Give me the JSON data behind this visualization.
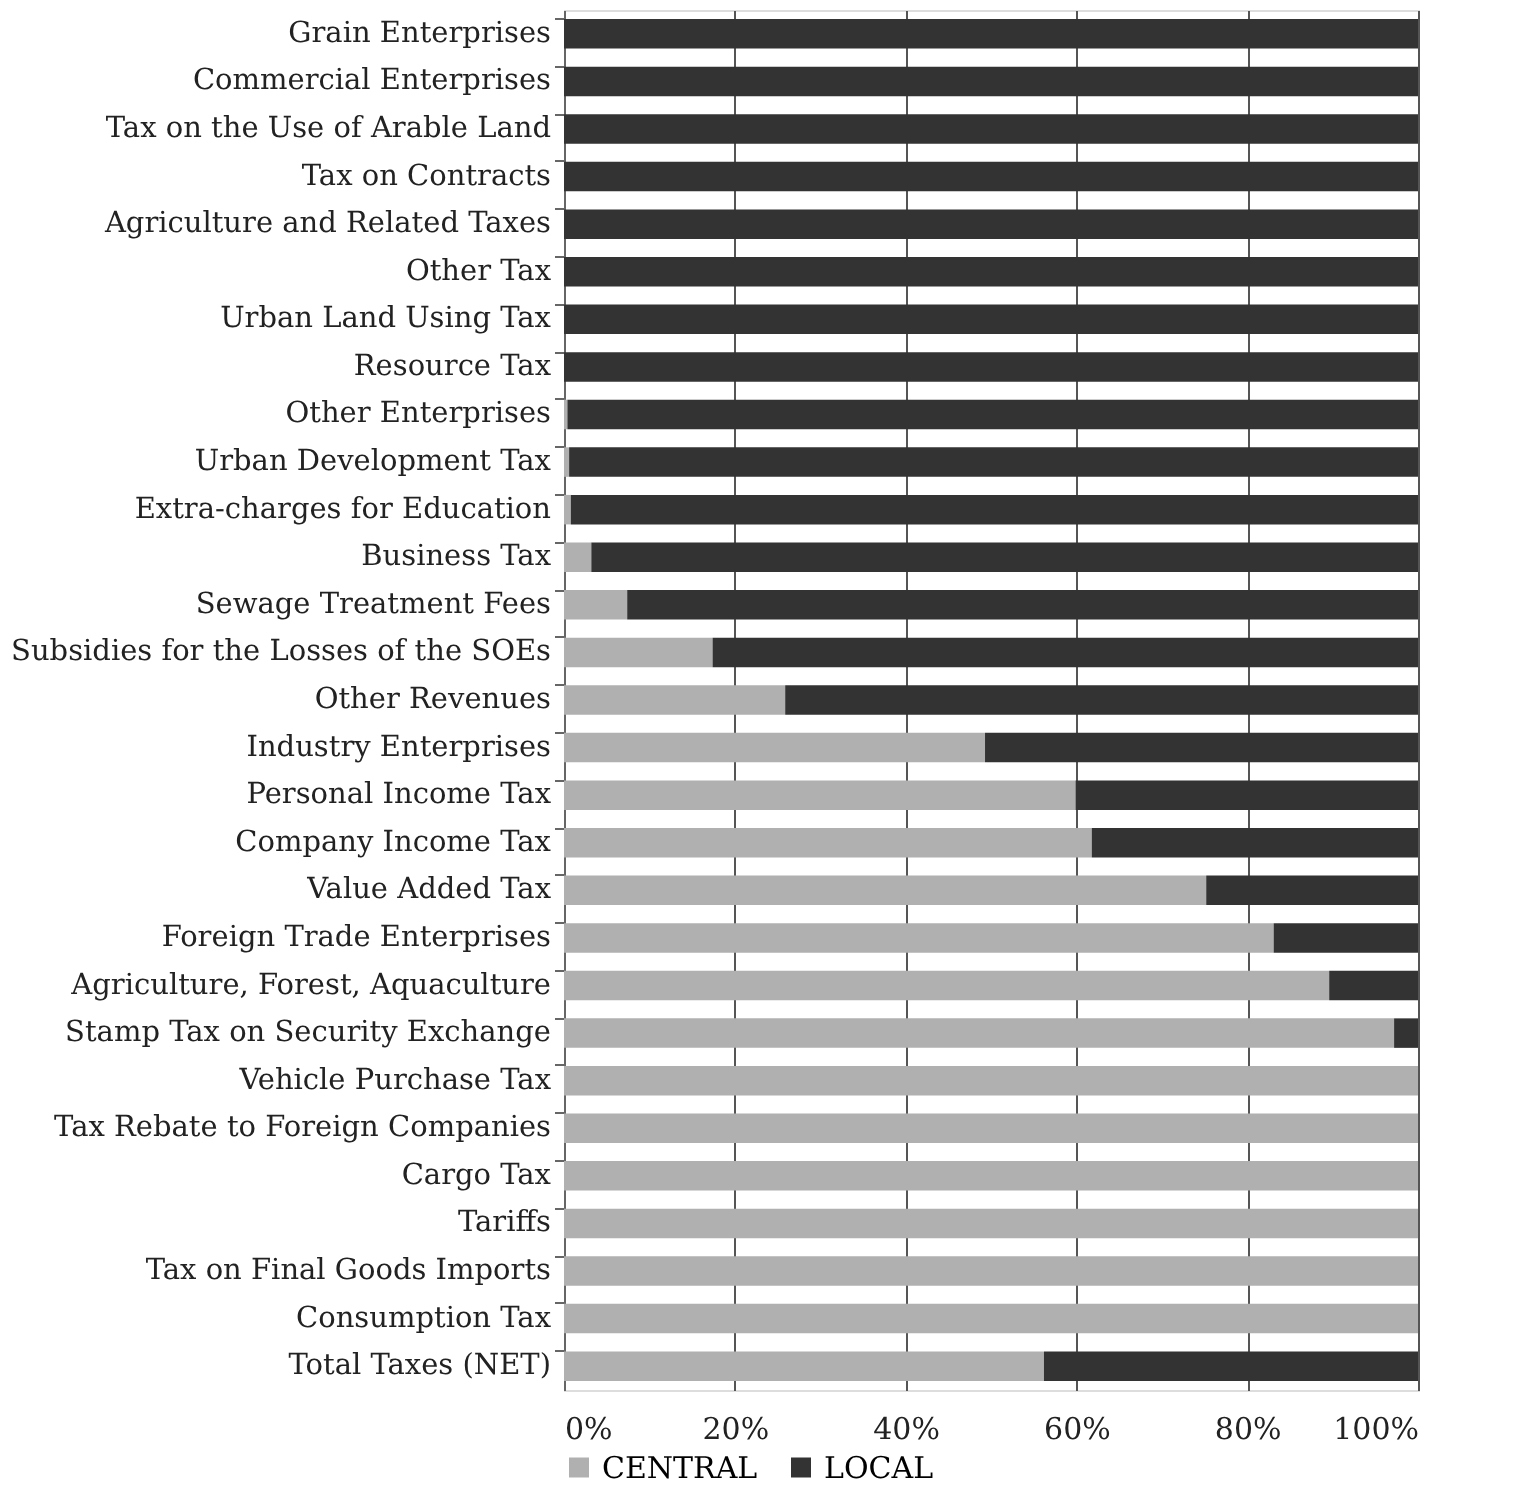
{
  "chart_data": {
    "type": "bar",
    "orientation": "horizontal",
    "stacked": true,
    "categories": [
      "Grain Enterprises",
      "Commercial Enterprises",
      "Tax on the Use of Arable Land",
      "Tax on Contracts",
      "Agriculture and Related Taxes",
      "Other Tax",
      "Urban Land Using Tax",
      "Resource Tax",
      "Other Enterprises",
      "Urban Development Tax",
      "Extra-charges for Education",
      "Business Tax",
      "Sewage Treatment Fees",
      "Subsidies for the Losses of the SOEs",
      "Other Revenues",
      "Industry Enterprises",
      "Personal Income Tax",
      "Company Income Tax",
      "Value Added Tax",
      "Foreign Trade Enterprises",
      "Agriculture, Forest, Aquaculture",
      "Stamp Tax on Security Exchange",
      "Vehicle Purchase Tax",
      "Tax Rebate to Foreign Companies",
      "Cargo Tax",
      "Tariffs",
      "Tax on Final Goods Imports",
      "Consumption Tax",
      "Total Taxes (NET)"
    ],
    "series": [
      {
        "name": "CENTRAL",
        "color": "#b0b0b0",
        "values": [
          0,
          0,
          0,
          0,
          0,
          0,
          0,
          0,
          0.4,
          0.6,
          0.8,
          3.2,
          7.4,
          17.4,
          25.9,
          49.3,
          59.9,
          61.8,
          75.2,
          83.1,
          89.6,
          97.2,
          100,
          100,
          100,
          100,
          100,
          100,
          56.2
        ]
      },
      {
        "name": "LOCAL",
        "color": "#333333",
        "values": [
          100,
          100,
          100,
          100,
          100,
          100,
          100,
          100,
          99.6,
          99.4,
          99.2,
          96.8,
          92.6,
          82.6,
          74.1,
          50.7,
          40.1,
          38.2,
          24.8,
          16.9,
          10.4,
          2.8,
          0,
          0,
          0,
          0,
          0,
          0,
          43.8
        ]
      }
    ],
    "xlim": [
      0,
      100
    ],
    "xticks": [
      {
        "value": 0,
        "label": "0%"
      },
      {
        "value": 20,
        "label": "20%"
      },
      {
        "value": 40,
        "label": "40%"
      },
      {
        "value": 60,
        "label": "60%"
      },
      {
        "value": 80,
        "label": "80%"
      },
      {
        "value": 100,
        "label": "100%"
      }
    ],
    "grid": "x",
    "legend": "bottom"
  }
}
